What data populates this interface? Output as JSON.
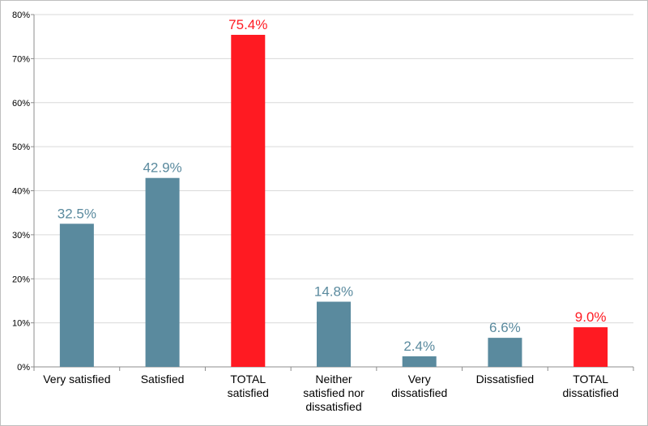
{
  "chart_data": {
    "type": "bar",
    "title": "",
    "xlabel": "",
    "ylabel": "",
    "categories": [
      [
        "Very satisfied"
      ],
      [
        "Satisfied"
      ],
      [
        "TOTAL",
        "satisfied"
      ],
      [
        "Neither",
        "satisfied nor",
        "dissatisfied"
      ],
      [
        "Very",
        "dissatisfied"
      ],
      [
        "Dissatisfied"
      ],
      [
        "TOTAL",
        "dissatisfied"
      ]
    ],
    "values": [
      32.5,
      42.9,
      75.4,
      14.8,
      2.4,
      6.6,
      9.0
    ],
    "data_labels": [
      "32.5%",
      "42.9%",
      "75.4%",
      "14.8%",
      "2.4%",
      "6.6%",
      "9.0%"
    ],
    "highlight": [
      false,
      false,
      true,
      false,
      false,
      false,
      true
    ],
    "colors": {
      "bar": "#5a8a9e",
      "highlight": "#ff1a22",
      "grid": "#d9d9d9",
      "axis": "#8c8c8c"
    },
    "ylim": [
      0,
      80
    ],
    "yticks": [
      0,
      10,
      20,
      30,
      40,
      50,
      60,
      70,
      80
    ],
    "ytick_labels": [
      "0%",
      "10%",
      "20%",
      "30%",
      "40%",
      "50%",
      "60%",
      "70%",
      "80%"
    ],
    "grid": true,
    "legend": "none"
  }
}
